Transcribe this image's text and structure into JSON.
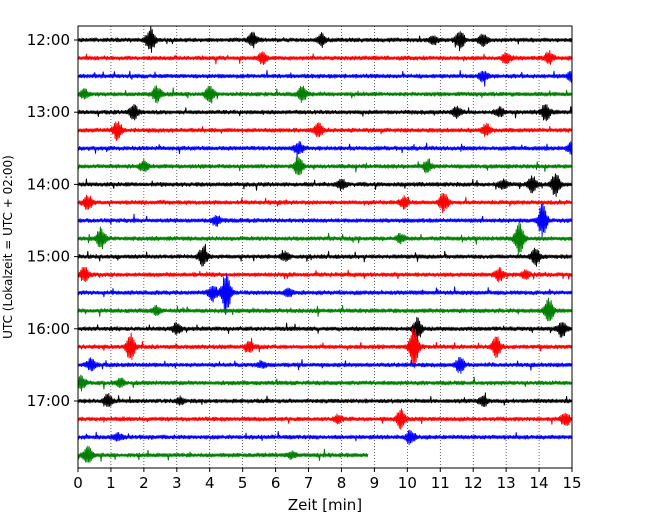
{
  "chart_data": {
    "type": "line",
    "title": "",
    "xlabel": "Zeit  [min]",
    "ylabel": "UTC (Lokalzeit = UTC + 02:00)",
    "xlim": [
      0,
      15
    ],
    "x_ticks": [
      "0",
      "1",
      "2",
      "3",
      "4",
      "5",
      "6",
      "7",
      "8",
      "9",
      "10",
      "11",
      "12",
      "13",
      "14",
      "15"
    ],
    "y_ticks": [
      {
        "label": "12:00",
        "row": 0
      },
      {
        "label": "13:00",
        "row": 4
      },
      {
        "label": "14:00",
        "row": 8
      },
      {
        "label": "15:00",
        "row": 12
      },
      {
        "label": "16:00",
        "row": 16
      },
      {
        "label": "17:00",
        "row": 20
      }
    ],
    "row_minutes": 15,
    "rows_total": 24,
    "vertical_grid": "dotted",
    "colors": [
      "#000000",
      "#ff0000",
      "#0000ff",
      "#008000"
    ],
    "traces": [
      {
        "row": 0,
        "color": "#000000",
        "end_min": 15,
        "events": [
          [
            2.2,
            12
          ],
          [
            5.3,
            7
          ],
          [
            7.4,
            6
          ],
          [
            11.6,
            9
          ],
          [
            12.3,
            5
          ],
          [
            10.8,
            4
          ]
        ]
      },
      {
        "row": 1,
        "color": "#ff0000",
        "end_min": 15,
        "events": [
          [
            5.6,
            6
          ],
          [
            13,
            5
          ],
          [
            14.3,
            6
          ]
        ]
      },
      {
        "row": 2,
        "color": "#0000ff",
        "end_min": 15,
        "events": [
          [
            12.3,
            5
          ],
          [
            15,
            5
          ]
        ]
      },
      {
        "row": 3,
        "color": "#008000",
        "end_min": 15,
        "events": [
          [
            2.4,
            8
          ],
          [
            4,
            9
          ],
          [
            6.8,
            7
          ],
          [
            0.2,
            4
          ]
        ]
      },
      {
        "row": 4,
        "color": "#000000",
        "end_min": 15,
        "events": [
          [
            1.7,
            7
          ],
          [
            14.2,
            8
          ],
          [
            11.5,
            5
          ],
          [
            12.8,
            4
          ]
        ]
      },
      {
        "row": 5,
        "color": "#ff0000",
        "end_min": 15,
        "events": [
          [
            1.2,
            9
          ],
          [
            7.3,
            7
          ],
          [
            12.4,
            6
          ]
        ]
      },
      {
        "row": 6,
        "color": "#0000ff",
        "end_min": 15,
        "events": [
          [
            6.7,
            6
          ],
          [
            15,
            6
          ]
        ]
      },
      {
        "row": 7,
        "color": "#008000",
        "end_min": 15,
        "events": [
          [
            6.7,
            10
          ],
          [
            2,
            5
          ],
          [
            10.6,
            5
          ]
        ]
      },
      {
        "row": 8,
        "color": "#000000",
        "end_min": 15,
        "events": [
          [
            14.5,
            11
          ],
          [
            13.8,
            8
          ],
          [
            8,
            5
          ],
          [
            12.9,
            4
          ]
        ]
      },
      {
        "row": 9,
        "color": "#ff0000",
        "end_min": 15,
        "events": [
          [
            0.3,
            7
          ],
          [
            11.1,
            9
          ],
          [
            9.9,
            5
          ]
        ]
      },
      {
        "row": 10,
        "color": "#0000ff",
        "end_min": 15,
        "events": [
          [
            14.1,
            16
          ],
          [
            4.2,
            5
          ]
        ]
      },
      {
        "row": 11,
        "color": "#008000",
        "end_min": 15,
        "events": [
          [
            13.4,
            16
          ],
          [
            0.7,
            10
          ],
          [
            9.8,
            4
          ]
        ]
      },
      {
        "row": 12,
        "color": "#000000",
        "end_min": 15,
        "events": [
          [
            3.8,
            10
          ],
          [
            13.9,
            8
          ],
          [
            6.3,
            4
          ]
        ]
      },
      {
        "row": 13,
        "color": "#ff0000",
        "end_min": 15,
        "events": [
          [
            0.2,
            7
          ],
          [
            12.8,
            6
          ],
          [
            13.6,
            4
          ]
        ]
      },
      {
        "row": 14,
        "color": "#0000ff",
        "end_min": 15,
        "events": [
          [
            4.5,
            22
          ],
          [
            4.1,
            8
          ],
          [
            6.4,
            4
          ]
        ]
      },
      {
        "row": 15,
        "color": "#008000",
        "end_min": 15,
        "events": [
          [
            14.3,
            13
          ],
          [
            2.4,
            4
          ]
        ]
      },
      {
        "row": 16,
        "color": "#000000",
        "end_min": 15,
        "events": [
          [
            10.3,
            11
          ],
          [
            3,
            6
          ],
          [
            14.7,
            8
          ]
        ]
      },
      {
        "row": 17,
        "color": "#ff0000",
        "end_min": 15,
        "events": [
          [
            1.6,
            14
          ],
          [
            10.2,
            22
          ],
          [
            12.7,
            10
          ],
          [
            5.2,
            5
          ]
        ]
      },
      {
        "row": 18,
        "color": "#0000ff",
        "end_min": 15,
        "events": [
          [
            0.4,
            6
          ],
          [
            11.6,
            7
          ],
          [
            5.6,
            3
          ]
        ]
      },
      {
        "row": 19,
        "color": "#008000",
        "end_min": 15,
        "events": [
          [
            0.1,
            7
          ],
          [
            1.3,
            4
          ]
        ]
      },
      {
        "row": 20,
        "color": "#000000",
        "end_min": 15,
        "events": [
          [
            0.9,
            6
          ],
          [
            12.3,
            5
          ],
          [
            3.1,
            3
          ]
        ]
      },
      {
        "row": 21,
        "color": "#ff0000",
        "end_min": 15,
        "events": [
          [
            9.8,
            9
          ],
          [
            14.8,
            7
          ],
          [
            7.9,
            4
          ]
        ]
      },
      {
        "row": 22,
        "color": "#0000ff",
        "end_min": 15,
        "events": [
          [
            10.1,
            7
          ],
          [
            1.2,
            3
          ]
        ]
      },
      {
        "row": 23,
        "color": "#008000",
        "end_min": 8.8,
        "events": [
          [
            0.3,
            8
          ],
          [
            6.5,
            3
          ]
        ]
      }
    ]
  }
}
